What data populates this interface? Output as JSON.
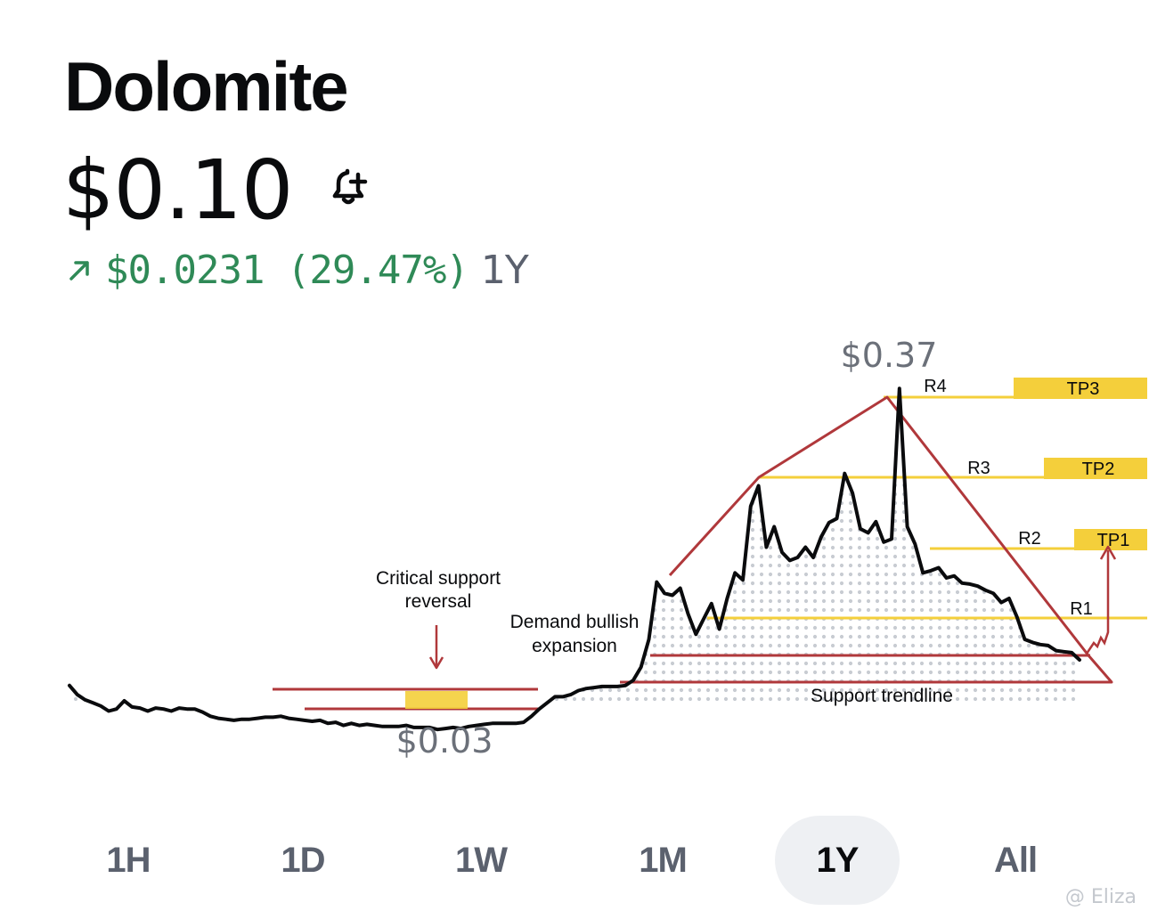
{
  "asset": {
    "name": "Dolomite"
  },
  "price": {
    "value": "$0.10",
    "alert_icon": "bell-plus-icon"
  },
  "change": {
    "arrow_icon": "arrow-up-right-icon",
    "text": "$0.0231 (29.47%)",
    "period": "1Y"
  },
  "tabs": [
    {
      "label": "1H",
      "active": false
    },
    {
      "label": "1D",
      "active": false
    },
    {
      "label": "1W",
      "active": false
    },
    {
      "label": "1M",
      "active": false
    },
    {
      "label": "1Y",
      "active": true
    },
    {
      "label": "All",
      "active": false
    }
  ],
  "watermark": "@ Eliza",
  "colors": {
    "line": "#0a0b0d",
    "positive": "#2f8a57",
    "annotation": "#b0383b",
    "target": "#f4cf3b",
    "dots": "#c8ccd2"
  },
  "chart_data": {
    "type": "line",
    "unit": "USD",
    "price_labels": {
      "high": "$0.37",
      "low": "$0.03"
    },
    "series": [
      {
        "values": [
          0.075,
          0.066,
          0.061,
          0.058,
          0.055,
          0.05,
          0.052,
          0.06,
          0.054,
          0.053,
          0.05,
          0.053,
          0.052,
          0.05,
          0.053,
          0.052,
          0.052,
          0.049,
          0.045,
          0.043,
          0.042,
          0.041,
          0.042,
          0.042,
          0.043,
          0.044,
          0.044,
          0.045,
          0.043,
          0.042,
          0.041,
          0.04,
          0.041,
          0.038,
          0.039,
          0.036,
          0.038,
          0.036,
          0.037,
          0.036,
          0.035,
          0.035,
          0.035,
          0.036,
          0.034,
          0.034,
          0.034,
          0.032,
          0.033,
          0.034,
          0.033,
          0.035,
          0.036,
          0.037,
          0.038,
          0.038,
          0.038,
          0.038,
          0.039,
          0.045,
          0.052,
          0.058,
          0.064,
          0.064,
          0.066,
          0.07,
          0.072,
          0.073,
          0.074,
          0.074,
          0.074,
          0.075,
          0.08,
          0.093,
          0.12,
          0.176,
          0.165,
          0.163,
          0.17,
          0.145,
          0.125,
          0.14,
          0.155,
          0.13,
          0.16,
          0.185,
          0.178,
          0.25,
          0.27,
          0.21,
          0.23,
          0.205,
          0.197,
          0.2,
          0.21,
          0.2,
          0.22,
          0.234,
          0.238,
          0.282,
          0.263,
          0.228,
          0.224,
          0.235,
          0.215,
          0.218,
          0.365,
          0.23,
          0.213,
          0.185,
          0.187,
          0.19,
          0.18,
          0.182,
          0.175,
          0.174,
          0.172,
          0.168,
          0.165,
          0.156,
          0.16,
          0.142,
          0.12,
          0.117,
          0.115,
          0.114,
          0.109,
          0.108,
          0.107,
          0.1
        ]
      }
    ],
    "levels": [
      {
        "label": "R4",
        "target": "TP3"
      },
      {
        "label": "R3",
        "target": "TP2"
      },
      {
        "label": "R2",
        "target": "TP1"
      },
      {
        "label": "R1"
      }
    ],
    "annotations": [
      {
        "text_lines": [
          "Critical support",
          "reversal"
        ]
      },
      {
        "text_lines": [
          "Demand bullish",
          "expansion"
        ]
      },
      {
        "text_lines": [
          "Support trendline"
        ]
      }
    ]
  }
}
